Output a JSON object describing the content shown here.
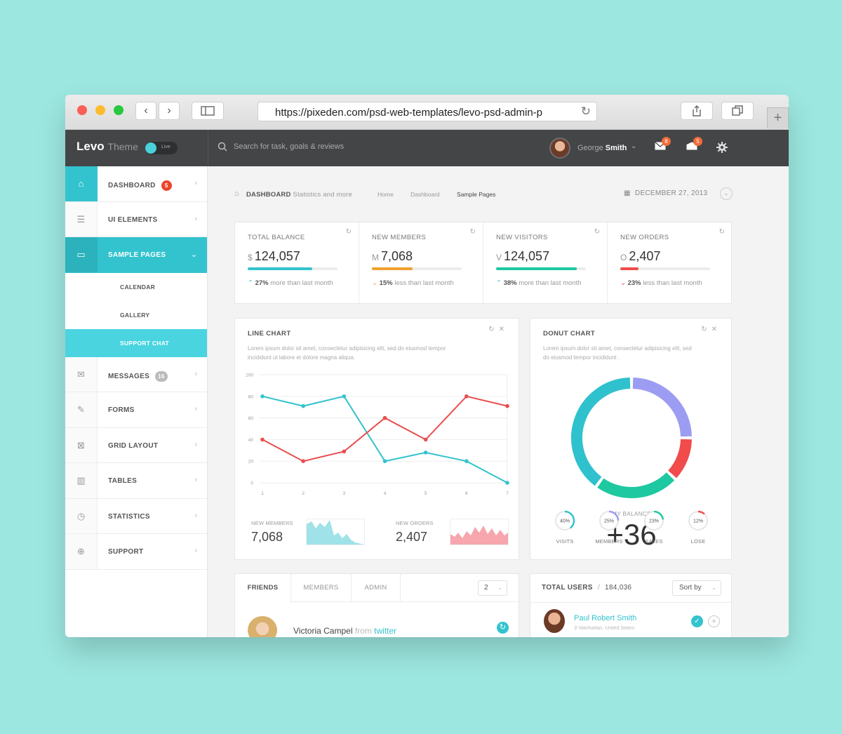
{
  "browser": {
    "url": "https://pixeden.com/psd-web-templates/levo-psd-admin-p",
    "back": "‹",
    "forward": "›",
    "reload": "↻",
    "new_tab": "+"
  },
  "header": {
    "brand": "Levo",
    "brand_sub": "Theme",
    "toggle_label": "Live",
    "search_placeholder": "Search for task, goals & reviews",
    "user_first": "George",
    "user_last": "Smith",
    "mail_badge": "8",
    "inbox_badge": "5"
  },
  "sidebar": {
    "items": [
      {
        "label": "DASHBOARD",
        "badge": "5",
        "icon": "home-icon"
      },
      {
        "label": "UI ELEMENTS",
        "icon": "sliders-icon"
      },
      {
        "label": "SAMPLE PAGES",
        "icon": "window-icon"
      },
      {
        "label": "MESSAGES",
        "badge": "16",
        "icon": "envelope-icon"
      },
      {
        "label": "FORMS",
        "icon": "edit-icon"
      },
      {
        "label": "GRID LAYOUT",
        "icon": "grid-icon"
      },
      {
        "label": "TABLES",
        "icon": "columns-icon"
      },
      {
        "label": "STATISTICS",
        "icon": "clock-icon"
      },
      {
        "label": "SUPPORT",
        "icon": "lifebuoy-icon"
      }
    ],
    "subitems": [
      "CALENDAR",
      "GALLERY",
      "SUPPORT CHAT"
    ]
  },
  "breadcrumb": {
    "title": "DASHBOARD",
    "subtitle": "Statistics and more",
    "links": [
      "Home",
      "Dashboard",
      "Sample Pages"
    ],
    "date": "DECEMBER 27, 2013"
  },
  "stats": [
    {
      "title": "TOTAL BALANCE",
      "prefix": "$",
      "value": "124,057",
      "progress": 0.72,
      "color": "#33c3ce",
      "direction": "up",
      "pct": "27%",
      "note": "more than last month"
    },
    {
      "title": "NEW MEMBERS",
      "prefix": "M",
      "value": "7,068",
      "progress": 0.45,
      "color": "#f0a030",
      "direction": "down",
      "pct": "15%",
      "note": "less than last month"
    },
    {
      "title": "NEW VISITORS",
      "prefix": "V",
      "value": "124,057",
      "progress": 0.9,
      "color": "#1ec8a0",
      "direction": "up",
      "pct": "38%",
      "note": "more than last month"
    },
    {
      "title": "NEW ORDERS",
      "prefix": "O",
      "value": "2,407",
      "progress": 0.2,
      "color": "#f14b4b",
      "direction": "down",
      "pct": "23%",
      "note": "less than last month"
    }
  ],
  "line_panel": {
    "title": "LINE CHART",
    "desc1": "Lorem ipsum dolor sit amet, consectetur adipisicing elit, sed do eiusmod tempor",
    "desc2": "incididunt ut labore et dolore magna aliqua.",
    "mini": [
      {
        "label": "NEW MEMBERS",
        "value": "7,068",
        "color": "#33c3ce"
      },
      {
        "label": "NEW ORDERS",
        "value": "2,407",
        "color": "#f14b4b"
      }
    ]
  },
  "chart_data": {
    "type": "line",
    "x": [
      1,
      2,
      3,
      4,
      5,
      6,
      7
    ],
    "ylim": [
      0,
      100
    ],
    "yticks": [
      0,
      20,
      40,
      60,
      80,
      100
    ],
    "grid": true,
    "series": [
      {
        "color": "#33c3ce",
        "values": [
          80,
          71,
          80,
          20,
          28,
          20,
          0
        ]
      },
      {
        "color": "#ea4d4d",
        "values": [
          40,
          20,
          29,
          60,
          40,
          80,
          71
        ]
      }
    ]
  },
  "donut_panel": {
    "title": "DONUT CHART",
    "desc1": "Lorem ipsum dolor sit amet, consectetur adipisicing elit, sed",
    "desc2": "do eiusmod tempor incididunt .",
    "center_label": "MY BALANCE",
    "center_value": "+36",
    "segments": [
      {
        "value": 40,
        "color": "#2fc1cd"
      },
      {
        "value": 25,
        "color": "#9b9cf2"
      },
      {
        "value": 12,
        "color": "#f14b4b"
      },
      {
        "value": 23,
        "color": "#1ec8a0"
      }
    ],
    "small": [
      {
        "label": "VISITS",
        "pct": "40%",
        "value": 40,
        "color": "#33c3ce"
      },
      {
        "label": "MEMBERS",
        "pct": "25%",
        "value": 25,
        "color": "#9b9cf2"
      },
      {
        "label": "SALES",
        "pct": "23%",
        "value": 23,
        "color": "#1ec8a0"
      },
      {
        "label": "LOSE",
        "pct": "12%",
        "value": 12,
        "color": "#f14b4b"
      }
    ]
  },
  "friends_panel": {
    "tabs": [
      "FRIENDS",
      "MEMBERS",
      "ADMIN"
    ],
    "select_value": "2",
    "row": {
      "name": "Victoria Campel",
      "from": "from",
      "source": "twitter"
    }
  },
  "users_panel": {
    "title": "TOTAL USERS",
    "count": "184,036",
    "sort_label": "Sort by",
    "row": {
      "name": "Paul Robert Smith",
      "location": "Manhattan, United States"
    }
  }
}
